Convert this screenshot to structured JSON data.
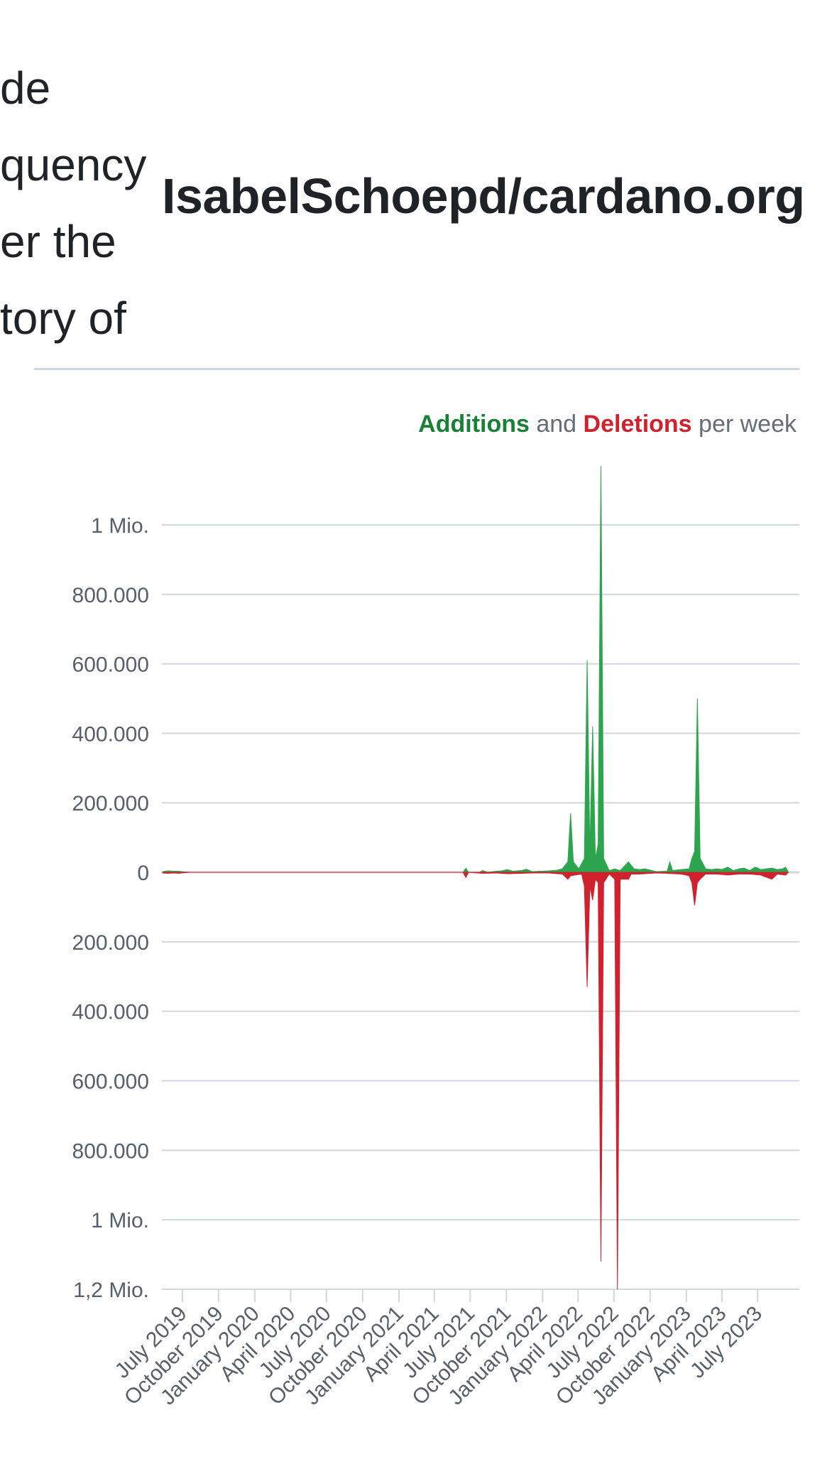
{
  "intro": {
    "lines": [
      "de",
      "quency",
      "er the",
      "tory of"
    ]
  },
  "repo_title": "IsabelSchoepd/cardano.org",
  "legend": {
    "additions": "Additions",
    "and": " and ",
    "deletions": "Deletions",
    "suffix": " per week"
  },
  "colors": {
    "additions": "#2da44e",
    "deletions": "#cf222e",
    "grid": "#d0d7de",
    "text": "#57606a"
  },
  "chart_data": {
    "type": "area",
    "title": "",
    "xlabel": "",
    "ylabel": "",
    "ylim": [
      -1200000,
      1200000
    ],
    "y_ticks": [
      {
        "value": 1000000,
        "label": "1 Mio."
      },
      {
        "value": 800000,
        "label": "800.000"
      },
      {
        "value": 600000,
        "label": "600.000"
      },
      {
        "value": 400000,
        "label": "400.000"
      },
      {
        "value": 200000,
        "label": "200.000"
      },
      {
        "value": 0,
        "label": "0"
      },
      {
        "value": -200000,
        "label": "200.000"
      },
      {
        "value": -400000,
        "label": "400.000"
      },
      {
        "value": -600000,
        "label": "600.000"
      },
      {
        "value": -800000,
        "label": "800.000"
      },
      {
        "value": -1000000,
        "label": "1 Mio."
      },
      {
        "value": -1200000,
        "label": "1,2 Mio."
      }
    ],
    "x_range": [
      "2019-05-10",
      "2023-10-15"
    ],
    "x_ticks": [
      {
        "date": "2019-07-01",
        "label": "July 2019"
      },
      {
        "date": "2019-10-01",
        "label": "October 2019"
      },
      {
        "date": "2020-01-01",
        "label": "January 2020"
      },
      {
        "date": "2020-04-01",
        "label": "April 2020"
      },
      {
        "date": "2020-07-01",
        "label": "July 2020"
      },
      {
        "date": "2020-10-01",
        "label": "October 2020"
      },
      {
        "date": "2021-01-01",
        "label": "January 2021"
      },
      {
        "date": "2021-04-01",
        "label": "April 2021"
      },
      {
        "date": "2021-07-01",
        "label": "July 2021"
      },
      {
        "date": "2021-10-01",
        "label": "October 2021"
      },
      {
        "date": "2022-01-01",
        "label": "January 2022"
      },
      {
        "date": "2022-04-01",
        "label": "April 2022"
      },
      {
        "date": "2022-07-01",
        "label": "July 2022"
      },
      {
        "date": "2022-10-01",
        "label": "October 2022"
      },
      {
        "date": "2023-01-01",
        "label": "January 2023"
      },
      {
        "date": "2023-04-01",
        "label": "April 2023"
      },
      {
        "date": "2023-07-01",
        "label": "July 2023"
      }
    ],
    "grid": true,
    "legend_position": "top-right",
    "series": [
      {
        "name": "Additions",
        "points": [
          [
            "2019-05-12",
            2000
          ],
          [
            "2019-05-26",
            4000
          ],
          [
            "2019-06-09",
            3000
          ],
          [
            "2019-06-23",
            3000
          ],
          [
            "2019-07-07",
            1000
          ],
          [
            "2019-07-21",
            0
          ],
          [
            "2021-06-13",
            0
          ],
          [
            "2021-06-20",
            12000
          ],
          [
            "2021-06-27",
            0
          ],
          [
            "2021-07-25",
            0
          ],
          [
            "2021-08-01",
            5000
          ],
          [
            "2021-08-15",
            0
          ],
          [
            "2021-09-05",
            3000
          ],
          [
            "2021-09-19",
            4000
          ],
          [
            "2021-10-03",
            8000
          ],
          [
            "2021-10-17",
            3000
          ],
          [
            "2021-11-07",
            5000
          ],
          [
            "2021-11-21",
            9000
          ],
          [
            "2021-12-05",
            2000
          ],
          [
            "2021-12-26",
            3000
          ],
          [
            "2022-01-16",
            4000
          ],
          [
            "2022-02-06",
            6000
          ],
          [
            "2022-02-20",
            10000
          ],
          [
            "2022-03-06",
            30000
          ],
          [
            "2022-03-13",
            170000
          ],
          [
            "2022-03-20",
            30000
          ],
          [
            "2022-04-03",
            10000
          ],
          [
            "2022-04-17",
            40000
          ],
          [
            "2022-04-24",
            610000
          ],
          [
            "2022-05-01",
            60000
          ],
          [
            "2022-05-08",
            420000
          ],
          [
            "2022-05-15",
            40000
          ],
          [
            "2022-05-22",
            80000
          ],
          [
            "2022-05-29",
            1170000
          ],
          [
            "2022-06-05",
            40000
          ],
          [
            "2022-06-19",
            5000
          ],
          [
            "2022-07-03",
            10000
          ],
          [
            "2022-07-17",
            5000
          ],
          [
            "2022-08-07",
            30000
          ],
          [
            "2022-08-21",
            10000
          ],
          [
            "2022-09-04",
            8000
          ],
          [
            "2022-09-18",
            10000
          ],
          [
            "2022-10-16",
            2000
          ],
          [
            "2022-11-13",
            3000
          ],
          [
            "2022-11-20",
            30000
          ],
          [
            "2022-11-27",
            5000
          ],
          [
            "2022-12-18",
            8000
          ],
          [
            "2023-01-08",
            10000
          ],
          [
            "2023-01-15",
            40000
          ],
          [
            "2023-01-22",
            60000
          ],
          [
            "2023-01-29",
            500000
          ],
          [
            "2023-02-05",
            40000
          ],
          [
            "2023-02-19",
            10000
          ],
          [
            "2023-03-05",
            8000
          ],
          [
            "2023-03-19",
            10000
          ],
          [
            "2023-04-02",
            8000
          ],
          [
            "2023-04-16",
            15000
          ],
          [
            "2023-04-30",
            5000
          ],
          [
            "2023-05-14",
            10000
          ],
          [
            "2023-05-28",
            12000
          ],
          [
            "2023-06-11",
            5000
          ],
          [
            "2023-06-25",
            15000
          ],
          [
            "2023-07-09",
            8000
          ],
          [
            "2023-07-23",
            10000
          ],
          [
            "2023-08-06",
            12000
          ],
          [
            "2023-08-20",
            8000
          ],
          [
            "2023-09-03",
            10000
          ],
          [
            "2023-09-10",
            15000
          ],
          [
            "2023-09-17",
            0
          ]
        ]
      },
      {
        "name": "Deletions",
        "points": [
          [
            "2019-05-12",
            -2000
          ],
          [
            "2019-05-26",
            -3000
          ],
          [
            "2019-06-09",
            -2000
          ],
          [
            "2019-06-23",
            -3000
          ],
          [
            "2019-07-07",
            -1000
          ],
          [
            "2019-07-21",
            0
          ],
          [
            "2021-06-13",
            0
          ],
          [
            "2021-06-20",
            -15000
          ],
          [
            "2021-06-27",
            0
          ],
          [
            "2021-08-01",
            -3000
          ],
          [
            "2021-09-05",
            -2000
          ],
          [
            "2021-10-03",
            -4000
          ],
          [
            "2021-11-07",
            -3000
          ],
          [
            "2021-12-05",
            -2000
          ],
          [
            "2022-01-16",
            -2000
          ],
          [
            "2022-02-20",
            -5000
          ],
          [
            "2022-03-06",
            -20000
          ],
          [
            "2022-03-13",
            -10000
          ],
          [
            "2022-04-10",
            -5000
          ],
          [
            "2022-04-17",
            -40000
          ],
          [
            "2022-04-24",
            -330000
          ],
          [
            "2022-05-01",
            -40000
          ],
          [
            "2022-05-08",
            -80000
          ],
          [
            "2022-05-15",
            -20000
          ],
          [
            "2022-05-22",
            -30000
          ],
          [
            "2022-05-29",
            -1120000
          ],
          [
            "2022-06-05",
            -30000
          ],
          [
            "2022-06-19",
            -5000
          ],
          [
            "2022-07-03",
            -20000
          ],
          [
            "2022-07-10",
            -1200000
          ],
          [
            "2022-07-17",
            -20000
          ],
          [
            "2022-08-07",
            -20000
          ],
          [
            "2022-08-14",
            -5000
          ],
          [
            "2022-09-04",
            -5000
          ],
          [
            "2022-10-16",
            -2000
          ],
          [
            "2022-11-13",
            -3000
          ],
          [
            "2022-12-18",
            -5000
          ],
          [
            "2023-01-08",
            -10000
          ],
          [
            "2023-01-15",
            -30000
          ],
          [
            "2023-01-22",
            -95000
          ],
          [
            "2023-01-29",
            -30000
          ],
          [
            "2023-02-05",
            -20000
          ],
          [
            "2023-02-19",
            -5000
          ],
          [
            "2023-03-19",
            -5000
          ],
          [
            "2023-04-16",
            -8000
          ],
          [
            "2023-05-14",
            -5000
          ],
          [
            "2023-06-11",
            -5000
          ],
          [
            "2023-07-09",
            -8000
          ],
          [
            "2023-08-06",
            -20000
          ],
          [
            "2023-08-20",
            -5000
          ],
          [
            "2023-09-10",
            -8000
          ],
          [
            "2023-09-17",
            0
          ]
        ]
      }
    ]
  }
}
